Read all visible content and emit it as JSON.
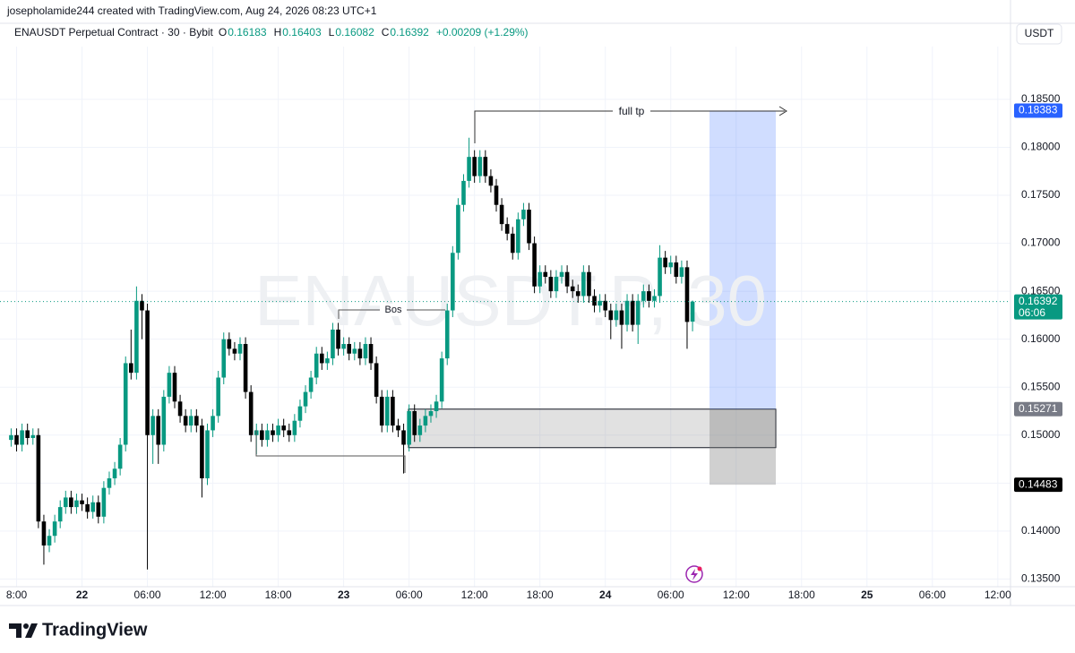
{
  "header": {
    "attribution": "josepholamide244 created with TradingView.com, Aug 24, 2026 08:23 UTC+1",
    "logo": "TradingView"
  },
  "chart_data": {
    "type": "candlestick",
    "title": "ENAUSDT Perpetual Contract · 30 · Bybit",
    "ohlc_labels": [
      "O",
      "H",
      "L",
      "C"
    ],
    "change": "+0.00209 (+1.29%)",
    "currency": "USDT",
    "watermark": "ENAUSDT.P, 30",
    "countdown": "06:06",
    "up_color": "#089981",
    "down_color": "#000000",
    "grid": true,
    "x": [
      -6.5,
      -6,
      -5.5,
      -5,
      -4.5,
      -4,
      -3.5,
      -3,
      -2.5,
      -2,
      -1.5,
      -1,
      -0.5,
      0,
      0.5,
      1,
      1.5,
      2,
      2.5,
      3,
      3.5,
      4,
      4.5,
      5,
      5.5,
      6,
      6.5,
      7,
      7.5,
      8,
      8.5,
      9,
      9.5,
      10,
      10.5,
      11,
      11.5,
      12,
      12.5,
      13,
      13.5,
      14,
      14.5,
      15,
      15.5,
      16,
      16.5,
      17,
      17.5,
      18,
      18.5,
      19,
      19.5,
      20,
      20.5,
      21,
      21.5,
      22,
      22.5,
      23,
      23.5,
      24,
      24.5,
      25,
      25.5,
      26,
      26.5,
      27,
      27.5,
      28,
      28.5,
      29,
      29.5,
      30,
      30.5,
      31,
      31.5,
      32,
      32.5,
      33,
      33.5,
      34,
      34.5,
      35,
      35.5,
      36,
      36.5,
      37,
      37.5,
      38,
      38.5,
      39,
      39.5,
      40,
      40.5,
      41,
      41.5,
      42,
      42.5,
      43,
      43.5,
      44,
      44.5,
      45,
      45.5,
      46,
      46.5,
      47,
      47.5,
      48,
      48.5,
      49,
      49.5,
      50,
      50.5,
      51,
      51.5,
      52,
      52.5,
      53,
      53.5,
      54,
      54.5,
      55,
      55.5,
      56
    ],
    "open": [
      0.1495,
      0.15,
      0.149,
      0.1505,
      0.1497,
      0.15,
      0.141,
      0.1385,
      0.1395,
      0.141,
      0.1425,
      0.1435,
      0.1425,
      0.1432,
      0.1428,
      0.142,
      0.143,
      0.1415,
      0.1445,
      0.1455,
      0.1465,
      0.149,
      0.1575,
      0.1565,
      0.164,
      0.163,
      0.15,
      0.152,
      0.149,
      0.154,
      0.1565,
      0.1535,
      0.152,
      0.151,
      0.152,
      0.151,
      0.1455,
      0.1505,
      0.152,
      0.156,
      0.16,
      0.159,
      0.1585,
      0.1595,
      0.1545,
      0.15,
      0.1505,
      0.1495,
      0.1505,
      0.15,
      0.151,
      0.1505,
      0.15,
      0.1515,
      0.153,
      0.1545,
      0.156,
      0.1585,
      0.1575,
      0.158,
      0.161,
      0.159,
      0.1595,
      0.1585,
      0.159,
      0.158,
      0.1595,
      0.1575,
      0.154,
      0.151,
      0.154,
      0.151,
      0.1505,
      0.149,
      0.1525,
      0.15,
      0.151,
      0.152,
      0.1525,
      0.1535,
      0.158,
      0.163,
      0.169,
      0.174,
      0.1765,
      0.179,
      0.177,
      0.179,
      0.177,
      0.176,
      0.174,
      0.172,
      0.171,
      0.169,
      0.1725,
      0.1735,
      0.17,
      0.1655,
      0.167,
      0.1665,
      0.165,
      0.1665,
      0.167,
      0.1655,
      0.165,
      0.1645,
      0.167,
      0.1645,
      0.1635,
      0.164,
      0.163,
      0.162,
      0.163,
      0.1615,
      0.164,
      0.1615,
      0.164,
      0.165,
      0.164,
      0.1645,
      0.1685,
      0.1675,
      0.168,
      0.1665,
      0.1675,
      0.16183
    ],
    "high": [
      0.1507,
      0.1507,
      0.1512,
      0.1512,
      0.1507,
      0.1507,
      0.1417,
      0.1402,
      0.1417,
      0.1432,
      0.1442,
      0.1442,
      0.1439,
      0.1439,
      0.1435,
      0.1437,
      0.1437,
      0.1452,
      0.1462,
      0.1472,
      0.1497,
      0.1582,
      0.161,
      0.1655,
      0.1647,
      0.1637,
      0.1527,
      0.1527,
      0.1547,
      0.1572,
      0.1572,
      0.1542,
      0.1527,
      0.1527,
      0.1527,
      0.1517,
      0.1512,
      0.1527,
      0.1567,
      0.1607,
      0.1607,
      0.1597,
      0.1602,
      0.1602,
      0.1552,
      0.1512,
      0.1512,
      0.1512,
      0.1512,
      0.1517,
      0.1517,
      0.1512,
      0.1522,
      0.1537,
      0.1552,
      0.1567,
      0.1592,
      0.1592,
      0.1587,
      0.1617,
      0.1617,
      0.1602,
      0.1602,
      0.1597,
      0.1597,
      0.1602,
      0.1602,
      0.1582,
      0.1547,
      0.1547,
      0.1547,
      0.1517,
      0.1512,
      0.1532,
      0.1532,
      0.1517,
      0.1527,
      0.1532,
      0.1542,
      0.1587,
      0.1637,
      0.1697,
      0.1747,
      0.1772,
      0.181,
      0.1797,
      0.1797,
      0.1797,
      0.1777,
      0.1767,
      0.1747,
      0.1727,
      0.1717,
      0.1732,
      0.1742,
      0.1742,
      0.1707,
      0.1677,
      0.1677,
      0.1672,
      0.1672,
      0.1677,
      0.1677,
      0.1662,
      0.1657,
      0.1677,
      0.1677,
      0.1652,
      0.1647,
      0.1647,
      0.1637,
      0.1637,
      0.1637,
      0.1647,
      0.1647,
      0.1647,
      0.1657,
      0.1657,
      0.1652,
      0.1698,
      0.1692,
      0.1687,
      0.1687,
      0.1682,
      0.1682,
      0.16403
    ],
    "low": [
      0.1488,
      0.1483,
      0.1483,
      0.149,
      0.149,
      0.1403,
      0.1365,
      0.1378,
      0.1388,
      0.1403,
      0.1418,
      0.1418,
      0.1418,
      0.1421,
      0.1413,
      0.1413,
      0.1408,
      0.1408,
      0.1438,
      0.1448,
      0.1458,
      0.1483,
      0.1558,
      0.1558,
      0.16,
      0.136,
      0.147,
      0.147,
      0.1483,
      0.1533,
      0.1528,
      0.1513,
      0.1503,
      0.1503,
      0.1503,
      0.1435,
      0.1448,
      0.1498,
      0.1513,
      0.1553,
      0.1583,
      0.1578,
      0.1578,
      0.1538,
      0.1493,
      0.148,
      0.1488,
      0.1488,
      0.1493,
      0.1493,
      0.1498,
      0.1493,
      0.1493,
      0.1508,
      0.1523,
      0.1538,
      0.1553,
      0.1568,
      0.1568,
      0.1573,
      0.1583,
      0.1583,
      0.1578,
      0.1578,
      0.1573,
      0.1573,
      0.1568,
      0.1533,
      0.1503,
      0.1503,
      0.1503,
      0.1498,
      0.146,
      0.1483,
      0.1493,
      0.1493,
      0.1503,
      0.1513,
      0.1518,
      0.1528,
      0.1573,
      0.1623,
      0.1683,
      0.1733,
      0.1758,
      0.1763,
      0.1763,
      0.1763,
      0.1753,
      0.1733,
      0.1713,
      0.1703,
      0.1683,
      0.1683,
      0.1718,
      0.1693,
      0.1648,
      0.1648,
      0.1658,
      0.1643,
      0.1643,
      0.1658,
      0.1648,
      0.1643,
      0.1638,
      0.1638,
      0.1638,
      0.1628,
      0.1628,
      0.1623,
      0.16,
      0.1613,
      0.159,
      0.1608,
      0.1608,
      0.1595,
      0.1633,
      0.1633,
      0.1633,
      0.1638,
      0.1668,
      0.1668,
      0.1658,
      0.1658,
      0.159,
      0.16082
    ],
    "close": [
      0.15,
      0.149,
      0.1505,
      0.1497,
      0.15,
      0.141,
      0.1385,
      0.1395,
      0.141,
      0.1425,
      0.1435,
      0.1425,
      0.1432,
      0.1428,
      0.142,
      0.143,
      0.1415,
      0.1445,
      0.1455,
      0.1465,
      0.149,
      0.1575,
      0.1565,
      0.164,
      0.163,
      0.15,
      0.152,
      0.149,
      0.154,
      0.1565,
      0.1535,
      0.152,
      0.151,
      0.152,
      0.151,
      0.1455,
      0.1505,
      0.152,
      0.156,
      0.16,
      0.159,
      0.1585,
      0.1595,
      0.1545,
      0.15,
      0.1505,
      0.1495,
      0.1505,
      0.15,
      0.151,
      0.1505,
      0.15,
      0.1515,
      0.153,
      0.1545,
      0.156,
      0.1585,
      0.1575,
      0.158,
      0.161,
      0.159,
      0.1595,
      0.1585,
      0.159,
      0.158,
      0.1595,
      0.1575,
      0.154,
      0.151,
      0.154,
      0.151,
      0.1505,
      0.149,
      0.1525,
      0.15,
      0.151,
      0.152,
      0.1525,
      0.1535,
      0.158,
      0.163,
      0.169,
      0.174,
      0.1765,
      0.179,
      0.177,
      0.179,
      0.177,
      0.176,
      0.174,
      0.172,
      0.171,
      0.169,
      0.1725,
      0.1735,
      0.17,
      0.1655,
      0.167,
      0.1665,
      0.165,
      0.1665,
      0.167,
      0.1655,
      0.165,
      0.1645,
      0.167,
      0.1645,
      0.1635,
      0.164,
      0.163,
      0.162,
      0.163,
      0.1615,
      0.164,
      0.1615,
      0.164,
      0.165,
      0.164,
      0.1645,
      0.1685,
      0.1675,
      0.168,
      0.1665,
      0.1675,
      0.1618,
      0.16392
    ],
    "xlim": [
      -6.7,
      85
    ],
    "xticks": [
      {
        "value": -6,
        "label": "8:00"
      },
      {
        "value": 0,
        "label": "22"
      },
      {
        "value": 6,
        "label": "06:00"
      },
      {
        "value": 12,
        "label": "12:00"
      },
      {
        "value": 18,
        "label": "18:00"
      },
      {
        "value": 24,
        "label": "23"
      },
      {
        "value": 30,
        "label": "06:00"
      },
      {
        "value": 36,
        "label": "12:00"
      },
      {
        "value": 42,
        "label": "18:00"
      },
      {
        "value": 48,
        "label": "24"
      },
      {
        "value": 54,
        "label": "06:00"
      },
      {
        "value": 60,
        "label": "12:00"
      },
      {
        "value": 66,
        "label": "18:00"
      },
      {
        "value": 72,
        "label": "25"
      },
      {
        "value": 78,
        "label": "06:00"
      },
      {
        "value": 84,
        "label": "12:00"
      }
    ],
    "ylim": [
      0.1342,
      0.1905
    ],
    "yticks": [
      {
        "value": 0.135,
        "label": "0.13500"
      },
      {
        "value": 0.14,
        "label": "0.14000"
      },
      {
        "value": 0.145,
        "label": "0.14500"
      },
      {
        "value": 0.15,
        "label": "0.15000"
      },
      {
        "value": 0.155,
        "label": "0.15500"
      },
      {
        "value": 0.16,
        "label": "0.16000"
      },
      {
        "value": 0.165,
        "label": "0.16500"
      },
      {
        "value": 0.17,
        "label": "0.17000"
      },
      {
        "value": 0.175,
        "label": "0.17500"
      },
      {
        "value": 0.18,
        "label": "0.18000"
      },
      {
        "value": 0.185,
        "label": "0.18500"
      }
    ],
    "position": {
      "target": 0.18383,
      "entry": 0.15271,
      "stop": 0.14483
    },
    "annotations": [
      {
        "text": "full tp"
      },
      {
        "text": "Bos"
      }
    ]
  }
}
